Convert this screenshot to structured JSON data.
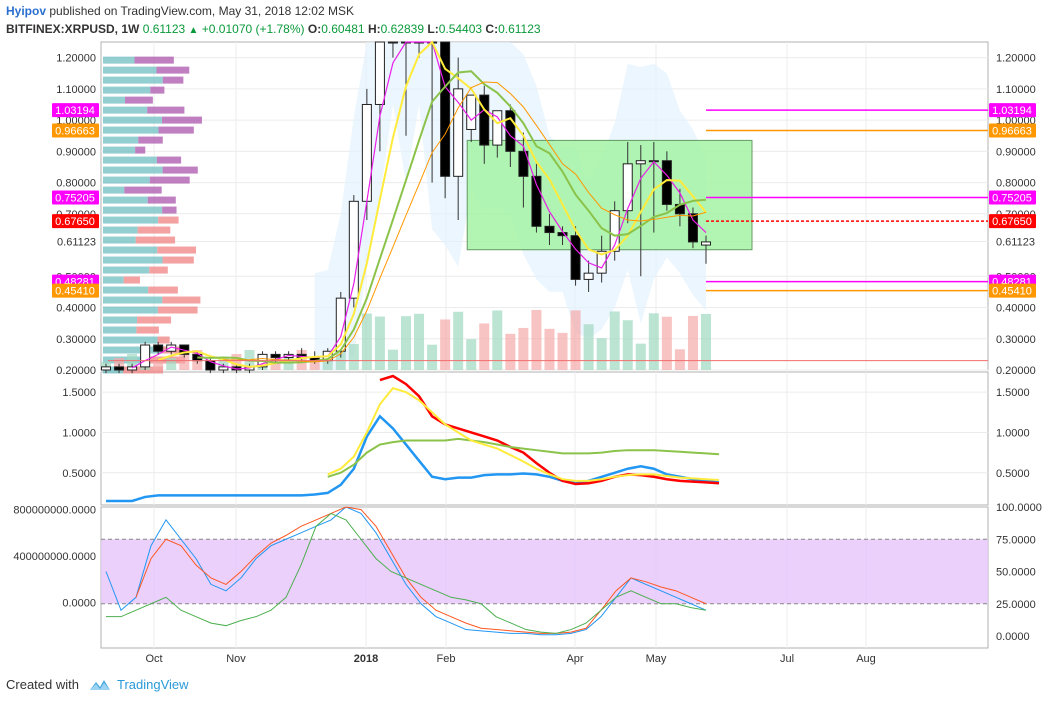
{
  "header": {
    "author": "Hyipov",
    "published": "published on TradingView.com, May 31, 2018 12:02 MSK",
    "symbol": "BITFINEX:XRPUSD, 1W",
    "last": "0.61123",
    "arrow": "▲",
    "change": "+0.01070 (+1.78%)",
    "o_label": "O:",
    "o": "0.60481",
    "h_label": "H:",
    "h": "0.62839",
    "l_label": "L:",
    "l": "0.54403",
    "c_label": "C:",
    "c": "0.61123"
  },
  "footer": {
    "created_with": "Created with",
    "brand": "TradingView"
  },
  "colors": {
    "up": "#ffffff",
    "down": "#000000",
    "magenta": "#ff00ff",
    "orange": "#ff9800",
    "red": "#ff0000",
    "blue": "#2196f3",
    "yellow": "#ffeb3b",
    "green": "#8bc34a"
  },
  "chart_data": [
    {
      "type": "candlestick",
      "title": "BITFINEX:XRPUSD, 1W",
      "x_ticks": [
        "Oct",
        "Nov",
        "2018",
        "Feb",
        "Apr",
        "May",
        "Jul",
        "Aug"
      ],
      "y_ticks": [
        "1.20000",
        "1.10000",
        "1.00000",
        "0.90000",
        "0.80000",
        "0.70000",
        "0.61123",
        "0.50000",
        "0.40000",
        "0.30000",
        "0.20000"
      ],
      "ylim": [
        0.2,
        1.25
      ],
      "price_badges": [
        {
          "label": "1.03194",
          "color": "#ff00ff",
          "value": 1.03194
        },
        {
          "label": "0.96663",
          "color": "#ff9800",
          "value": 0.96663
        },
        {
          "label": "0.75205",
          "color": "#ff00ff",
          "value": 0.75205
        },
        {
          "label": "0.67650",
          "color": "#ff0000",
          "value": 0.6765
        },
        {
          "label": "0.48281",
          "color": "#ff00ff",
          "value": 0.48281
        },
        {
          "label": "0.45410",
          "color": "#ff9800",
          "value": 0.4541
        }
      ],
      "current_price": {
        "label": "0.61123",
        "value": 0.61123
      },
      "candles": [
        {
          "o": 0.2,
          "h": 0.22,
          "l": 0.19,
          "c": 0.21
        },
        {
          "o": 0.21,
          "h": 0.22,
          "l": 0.19,
          "c": 0.2
        },
        {
          "o": 0.2,
          "h": 0.22,
          "l": 0.19,
          "c": 0.21
        },
        {
          "o": 0.21,
          "h": 0.29,
          "l": 0.2,
          "c": 0.28
        },
        {
          "o": 0.28,
          "h": 0.29,
          "l": 0.25,
          "c": 0.26
        },
        {
          "o": 0.26,
          "h": 0.29,
          "l": 0.25,
          "c": 0.28
        },
        {
          "o": 0.28,
          "h": 0.28,
          "l": 0.24,
          "c": 0.25
        },
        {
          "o": 0.25,
          "h": 0.26,
          "l": 0.22,
          "c": 0.23
        },
        {
          "o": 0.23,
          "h": 0.24,
          "l": 0.19,
          "c": 0.2
        },
        {
          "o": 0.2,
          "h": 0.22,
          "l": 0.19,
          "c": 0.21
        },
        {
          "o": 0.21,
          "h": 0.22,
          "l": 0.19,
          "c": 0.2
        },
        {
          "o": 0.2,
          "h": 0.22,
          "l": 0.19,
          "c": 0.21
        },
        {
          "o": 0.21,
          "h": 0.26,
          "l": 0.2,
          "c": 0.25
        },
        {
          "o": 0.25,
          "h": 0.26,
          "l": 0.22,
          "c": 0.24
        },
        {
          "o": 0.24,
          "h": 0.26,
          "l": 0.23,
          "c": 0.25
        },
        {
          "o": 0.25,
          "h": 0.27,
          "l": 0.23,
          "c": 0.24
        },
        {
          "o": 0.24,
          "h": 0.26,
          "l": 0.22,
          "c": 0.23
        },
        {
          "o": 0.23,
          "h": 0.27,
          "l": 0.22,
          "c": 0.26
        },
        {
          "o": 0.26,
          "h": 0.45,
          "l": 0.24,
          "c": 0.43
        },
        {
          "o": 0.43,
          "h": 0.76,
          "l": 0.4,
          "c": 0.74
        },
        {
          "o": 0.74,
          "h": 1.1,
          "l": 0.68,
          "c": 1.05
        },
        {
          "o": 1.05,
          "h": 1.25,
          "l": 0.9,
          "c": 1.25
        },
        {
          "o": 1.25,
          "h": 1.25,
          "l": 1.2,
          "c": 1.25
        },
        {
          "o": 1.25,
          "h": 1.25,
          "l": 0.95,
          "c": 1.25
        },
        {
          "o": 1.25,
          "h": 1.25,
          "l": 1.2,
          "c": 1.25
        },
        {
          "o": 1.25,
          "h": 1.25,
          "l": 0.8,
          "c": 1.25
        },
        {
          "o": 1.25,
          "h": 1.25,
          "l": 0.75,
          "c": 0.82
        },
        {
          "o": 0.82,
          "h": 1.2,
          "l": 0.68,
          "c": 1.1
        },
        {
          "o": 0.97,
          "h": 1.07,
          "l": 0.93,
          "c": 1.08
        },
        {
          "o": 1.08,
          "h": 1.11,
          "l": 0.86,
          "c": 0.92
        },
        {
          "o": 0.92,
          "h": 1.03,
          "l": 0.88,
          "c": 1.03
        },
        {
          "o": 1.03,
          "h": 1.05,
          "l": 0.85,
          "c": 0.9
        },
        {
          "o": 0.9,
          "h": 0.96,
          "l": 0.72,
          "c": 0.82
        },
        {
          "o": 0.82,
          "h": 0.86,
          "l": 0.64,
          "c": 0.66
        },
        {
          "o": 0.66,
          "h": 0.7,
          "l": 0.6,
          "c": 0.64
        },
        {
          "o": 0.64,
          "h": 0.66,
          "l": 0.6,
          "c": 0.63
        },
        {
          "o": 0.63,
          "h": 0.66,
          "l": 0.47,
          "c": 0.49
        },
        {
          "o": 0.49,
          "h": 0.55,
          "l": 0.45,
          "c": 0.51
        },
        {
          "o": 0.51,
          "h": 0.63,
          "l": 0.48,
          "c": 0.58
        },
        {
          "o": 0.58,
          "h": 0.74,
          "l": 0.55,
          "c": 0.71
        },
        {
          "o": 0.71,
          "h": 0.93,
          "l": 0.67,
          "c": 0.86
        },
        {
          "o": 0.86,
          "h": 0.92,
          "l": 0.5,
          "c": 0.87
        },
        {
          "o": 0.87,
          "h": 0.93,
          "l": 0.64,
          "c": 0.87
        },
        {
          "o": 0.87,
          "h": 0.9,
          "l": 0.71,
          "c": 0.73
        },
        {
          "o": 0.73,
          "h": 0.78,
          "l": 0.66,
          "c": 0.7
        },
        {
          "o": 0.7,
          "h": 0.72,
          "l": 0.59,
          "c": 0.61
        },
        {
          "o": 0.6,
          "h": 0.63,
          "l": 0.54,
          "c": 0.61
        }
      ]
    },
    {
      "type": "line",
      "y_ticks": [
        "1.5000",
        "1.0000",
        "0.5000"
      ],
      "ylim": [
        0.1,
        1.75
      ],
      "series": [
        {
          "color": "#2196f3",
          "values": [
            0.15,
            0.15,
            0.15,
            0.2,
            0.22,
            0.22,
            0.22,
            0.22,
            0.22,
            0.22,
            0.22,
            0.22,
            0.22,
            0.22,
            0.22,
            0.22,
            0.23,
            0.25,
            0.35,
            0.55,
            0.95,
            1.2,
            1.05,
            0.85,
            0.65,
            0.45,
            0.42,
            0.44,
            0.44,
            0.47,
            0.48,
            0.48,
            0.49,
            0.48,
            0.45,
            0.4,
            0.37,
            0.4,
            0.45,
            0.5,
            0.55,
            0.58,
            0.55,
            0.48,
            0.45,
            0.42,
            0.4,
            0.38
          ]
        },
        {
          "color": "#ff0000",
          "values": [
            null,
            null,
            null,
            null,
            null,
            null,
            null,
            null,
            null,
            null,
            null,
            null,
            null,
            null,
            null,
            null,
            null,
            null,
            null,
            null,
            null,
            1.65,
            1.7,
            1.6,
            1.45,
            1.2,
            1.1,
            1.05,
            1.0,
            0.95,
            0.9,
            0.82,
            0.75,
            0.62,
            0.5,
            0.4,
            0.36,
            0.37,
            0.4,
            0.45,
            0.48,
            0.47,
            0.45,
            0.42,
            0.4,
            0.39,
            0.38,
            0.37
          ]
        },
        {
          "color": "#8bc34a",
          "values": [
            null,
            null,
            null,
            null,
            null,
            null,
            null,
            null,
            null,
            null,
            null,
            null,
            null,
            null,
            null,
            null,
            null,
            0.45,
            0.5,
            0.6,
            0.75,
            0.85,
            0.88,
            0.9,
            0.9,
            0.9,
            0.9,
            0.92,
            0.9,
            0.88,
            0.85,
            0.82,
            0.8,
            0.78,
            0.76,
            0.74,
            0.74,
            0.74,
            0.75,
            0.77,
            0.78,
            0.78,
            0.78,
            0.77,
            0.76,
            0.75,
            0.74,
            0.73
          ]
        },
        {
          "color": "#ffeb3b",
          "values": [
            null,
            null,
            null,
            null,
            null,
            null,
            null,
            null,
            null,
            null,
            null,
            null,
            null,
            null,
            null,
            null,
            null,
            0.48,
            0.55,
            0.7,
            1.0,
            1.35,
            1.55,
            1.5,
            1.4,
            1.25,
            1.1,
            1.0,
            0.9,
            0.85,
            0.8,
            0.72,
            0.64,
            0.55,
            0.48,
            0.42,
            0.4,
            0.4,
            0.42,
            0.45,
            0.47,
            0.48,
            0.48,
            0.46,
            0.44,
            0.43,
            0.42,
            0.41
          ]
        }
      ]
    },
    {
      "type": "line",
      "left_y_ticks": [
        "800000000.0000",
        "400000000.0000",
        "0.0000"
      ],
      "right_y_ticks": [
        "100.0000",
        "75.0000",
        "50.0000",
        "25.0000",
        "0.0000"
      ],
      "ylim": [
        0,
        100
      ],
      "band": [
        25,
        75
      ],
      "series": [
        {
          "color": "#2196f3",
          "values": [
            50,
            20,
            30,
            70,
            90,
            75,
            60,
            40,
            35,
            45,
            60,
            70,
            75,
            80,
            85,
            90,
            100,
            95,
            80,
            60,
            40,
            25,
            15,
            10,
            5,
            4,
            3,
            2,
            2,
            1,
            1,
            2,
            5,
            15,
            30,
            45,
            40,
            35,
            30,
            25,
            20
          ]
        },
        {
          "color": "#ff5722",
          "values": [
            null,
            null,
            30,
            60,
            75,
            70,
            55,
            45,
            40,
            50,
            62,
            72,
            78,
            85,
            90,
            95,
            100,
            98,
            85,
            65,
            45,
            30,
            20,
            15,
            10,
            6,
            5,
            4,
            3,
            2,
            2,
            3,
            6,
            20,
            35,
            45,
            42,
            38,
            35,
            30,
            25
          ]
        },
        {
          "color": "#4caf50",
          "values": [
            15,
            15,
            20,
            25,
            30,
            20,
            15,
            10,
            8,
            12,
            15,
            20,
            30,
            55,
            85,
            95,
            90,
            75,
            60,
            50,
            45,
            40,
            35,
            30,
            28,
            25,
            15,
            10,
            5,
            3,
            2,
            5,
            10,
            20,
            30,
            35,
            30,
            25,
            25,
            22,
            20
          ]
        }
      ]
    }
  ]
}
